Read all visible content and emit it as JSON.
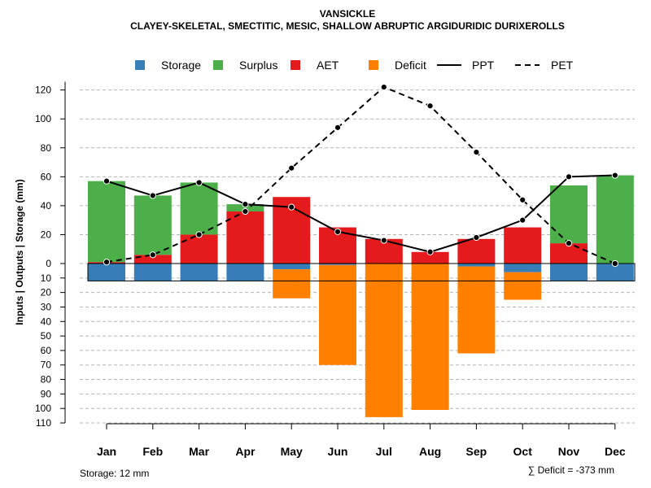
{
  "chart_data": {
    "type": "bar",
    "title": "VANSICKLE",
    "subtitle": "CLAYEY-SKELETAL, SMECTITIC, MESIC, SHALLOW ABRUPTIC ARGIDURIDIC DURIXEROLLS",
    "ylabel": "Inputs | Outputs | Storage    (mm)",
    "categories": [
      "Jan",
      "Feb",
      "Mar",
      "Apr",
      "May",
      "Jun",
      "Jul",
      "Aug",
      "Sep",
      "Oct",
      "Nov",
      "Dec"
    ],
    "ylim_top": [
      0,
      120
    ],
    "ylim_bottom": [
      0,
      110
    ],
    "yticks_top": [
      0,
      20,
      40,
      60,
      80,
      100,
      120
    ],
    "yticks_bottom": [
      10,
      20,
      30,
      40,
      50,
      60,
      70,
      80,
      90,
      100,
      110
    ],
    "grid": true,
    "legend_position": "top",
    "series": [
      {
        "name": "Storage",
        "color": "#377EB8",
        "values": [
          12,
          12,
          12,
          12,
          4,
          1,
          0,
          0,
          2,
          6,
          12,
          12
        ]
      },
      {
        "name": "Surplus",
        "color": "#4DAF4A",
        "values": [
          56,
          41,
          36,
          5,
          0,
          0,
          0,
          0,
          0,
          0,
          40,
          61
        ]
      },
      {
        "name": "AET",
        "color": "#E41A1C",
        "values": [
          1,
          6,
          20,
          36,
          46,
          25,
          17,
          8,
          17,
          25,
          14,
          0
        ]
      },
      {
        "name": "Deficit",
        "color": "#FF7F00",
        "values": [
          0,
          0,
          0,
          0,
          20,
          69,
          106,
          101,
          60,
          19,
          0,
          0
        ]
      },
      {
        "name": "PPT",
        "color": "#000000",
        "style": "solid",
        "values": [
          57,
          47,
          56,
          41,
          39,
          22,
          16,
          8,
          18,
          30,
          60,
          61
        ]
      },
      {
        "name": "PET",
        "color": "#000000",
        "style": "dashed",
        "values": [
          1,
          6,
          20,
          36,
          66,
          94,
          122,
          109,
          77,
          44,
          14,
          0
        ]
      }
    ],
    "storage_capacity": 12,
    "storage_note": "Storage: 12 mm",
    "deficit_note": "∑ Deficit = -373 mm"
  }
}
